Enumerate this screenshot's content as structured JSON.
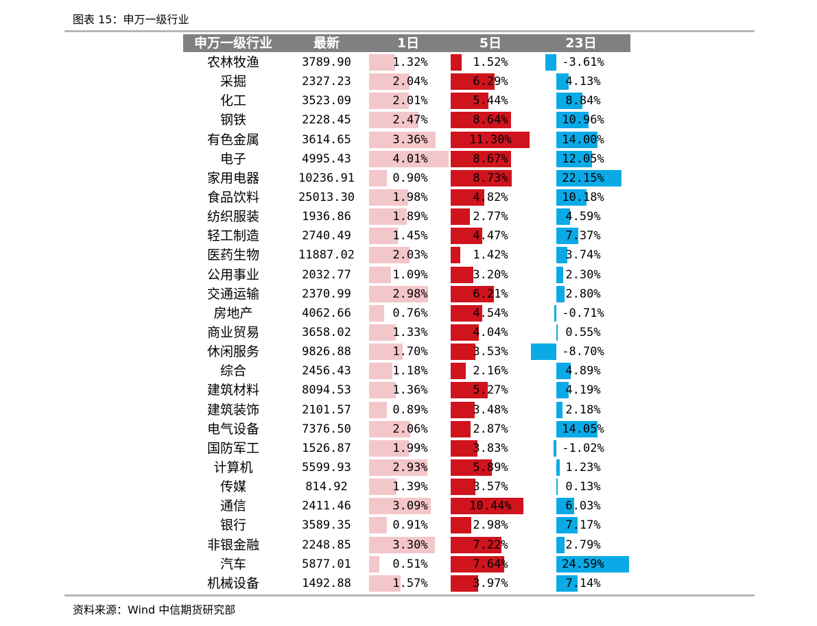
{
  "figure": {
    "title": "图表 15：申万一级行业",
    "source": "资料来源：Wind  中信期货研究部"
  },
  "table": {
    "headers": [
      "申万一级行业",
      "最新",
      "1日",
      "5日",
      "23日"
    ],
    "rows": [
      {
        "name": "农林牧渔",
        "latest": "3789.90",
        "d1": "1.32%",
        "d5": "1.52%",
        "d23": "-3.61%"
      },
      {
        "name": "采掘",
        "latest": "2327.23",
        "d1": "2.04%",
        "d5": "6.29%",
        "d23": "4.13%"
      },
      {
        "name": "化工",
        "latest": "3523.09",
        "d1": "2.01%",
        "d5": "5.44%",
        "d23": "8.84%"
      },
      {
        "name": "钢铁",
        "latest": "2228.45",
        "d1": "2.47%",
        "d5": "8.64%",
        "d23": "10.96%"
      },
      {
        "name": "有色金属",
        "latest": "3614.65",
        "d1": "3.36%",
        "d5": "11.30%",
        "d23": "14.00%"
      },
      {
        "name": "电子",
        "latest": "4995.43",
        "d1": "4.01%",
        "d5": "8.67%",
        "d23": "12.05%"
      },
      {
        "name": "家用电器",
        "latest": "10236.91",
        "d1": "0.90%",
        "d5": "8.73%",
        "d23": "22.15%"
      },
      {
        "name": "食品饮料",
        "latest": "25013.30",
        "d1": "1.98%",
        "d5": "4.82%",
        "d23": "10.18%"
      },
      {
        "name": "纺织服装",
        "latest": "1936.86",
        "d1": "1.89%",
        "d5": "2.77%",
        "d23": "4.59%"
      },
      {
        "name": "轻工制造",
        "latest": "2740.49",
        "d1": "1.45%",
        "d5": "4.47%",
        "d23": "7.37%"
      },
      {
        "name": "医药生物",
        "latest": "11887.02",
        "d1": "2.03%",
        "d5": "1.42%",
        "d23": "3.74%"
      },
      {
        "name": "公用事业",
        "latest": "2032.77",
        "d1": "1.09%",
        "d5": "3.20%",
        "d23": "2.30%"
      },
      {
        "name": "交通运输",
        "latest": "2370.99",
        "d1": "2.98%",
        "d5": "6.21%",
        "d23": "2.80%"
      },
      {
        "name": "房地产",
        "latest": "4062.66",
        "d1": "0.76%",
        "d5": "4.54%",
        "d23": "-0.71%"
      },
      {
        "name": "商业贸易",
        "latest": "3658.02",
        "d1": "1.33%",
        "d5": "4.04%",
        "d23": "0.55%"
      },
      {
        "name": "休闲服务",
        "latest": "9826.88",
        "d1": "1.70%",
        "d5": "3.53%",
        "d23": "-8.70%"
      },
      {
        "name": "综合",
        "latest": "2456.43",
        "d1": "1.18%",
        "d5": "2.16%",
        "d23": "4.89%"
      },
      {
        "name": "建筑材料",
        "latest": "8094.53",
        "d1": "1.36%",
        "d5": "5.27%",
        "d23": "4.19%"
      },
      {
        "name": "建筑装饰",
        "latest": "2101.57",
        "d1": "0.89%",
        "d5": "3.48%",
        "d23": "2.18%"
      },
      {
        "name": "电气设备",
        "latest": "7376.50",
        "d1": "2.06%",
        "d5": "2.87%",
        "d23": "14.05%"
      },
      {
        "name": "国防军工",
        "latest": "1526.87",
        "d1": "1.99%",
        "d5": "3.83%",
        "d23": "-1.02%"
      },
      {
        "name": "计算机",
        "latest": "5599.93",
        "d1": "2.93%",
        "d5": "5.89%",
        "d23": "1.23%"
      },
      {
        "name": "传媒",
        "latest": "814.92",
        "d1": "1.39%",
        "d5": "3.57%",
        "d23": "0.13%"
      },
      {
        "name": "通信",
        "latest": "2411.46",
        "d1": "3.09%",
        "d5": "10.44%",
        "d23": "6.03%"
      },
      {
        "name": "银行",
        "latest": "3589.35",
        "d1": "0.91%",
        "d5": "2.98%",
        "d23": "7.17%"
      },
      {
        "name": "非银金融",
        "latest": "2248.85",
        "d1": "3.30%",
        "d5": "7.22%",
        "d23": "2.79%"
      },
      {
        "name": "汽车",
        "latest": "5877.01",
        "d1": "0.51%",
        "d5": "7.64%",
        "d23": "24.59%"
      },
      {
        "name": "机械设备",
        "latest": "1492.88",
        "d1": "1.57%",
        "d5": "3.97%",
        "d23": "7.14%"
      }
    ]
  },
  "colors": {
    "bar_1d": "#f3c6ca",
    "bar_5d": "#d0141e",
    "bar_23d": "#0aaae6",
    "header_bg": "#808080"
  }
}
